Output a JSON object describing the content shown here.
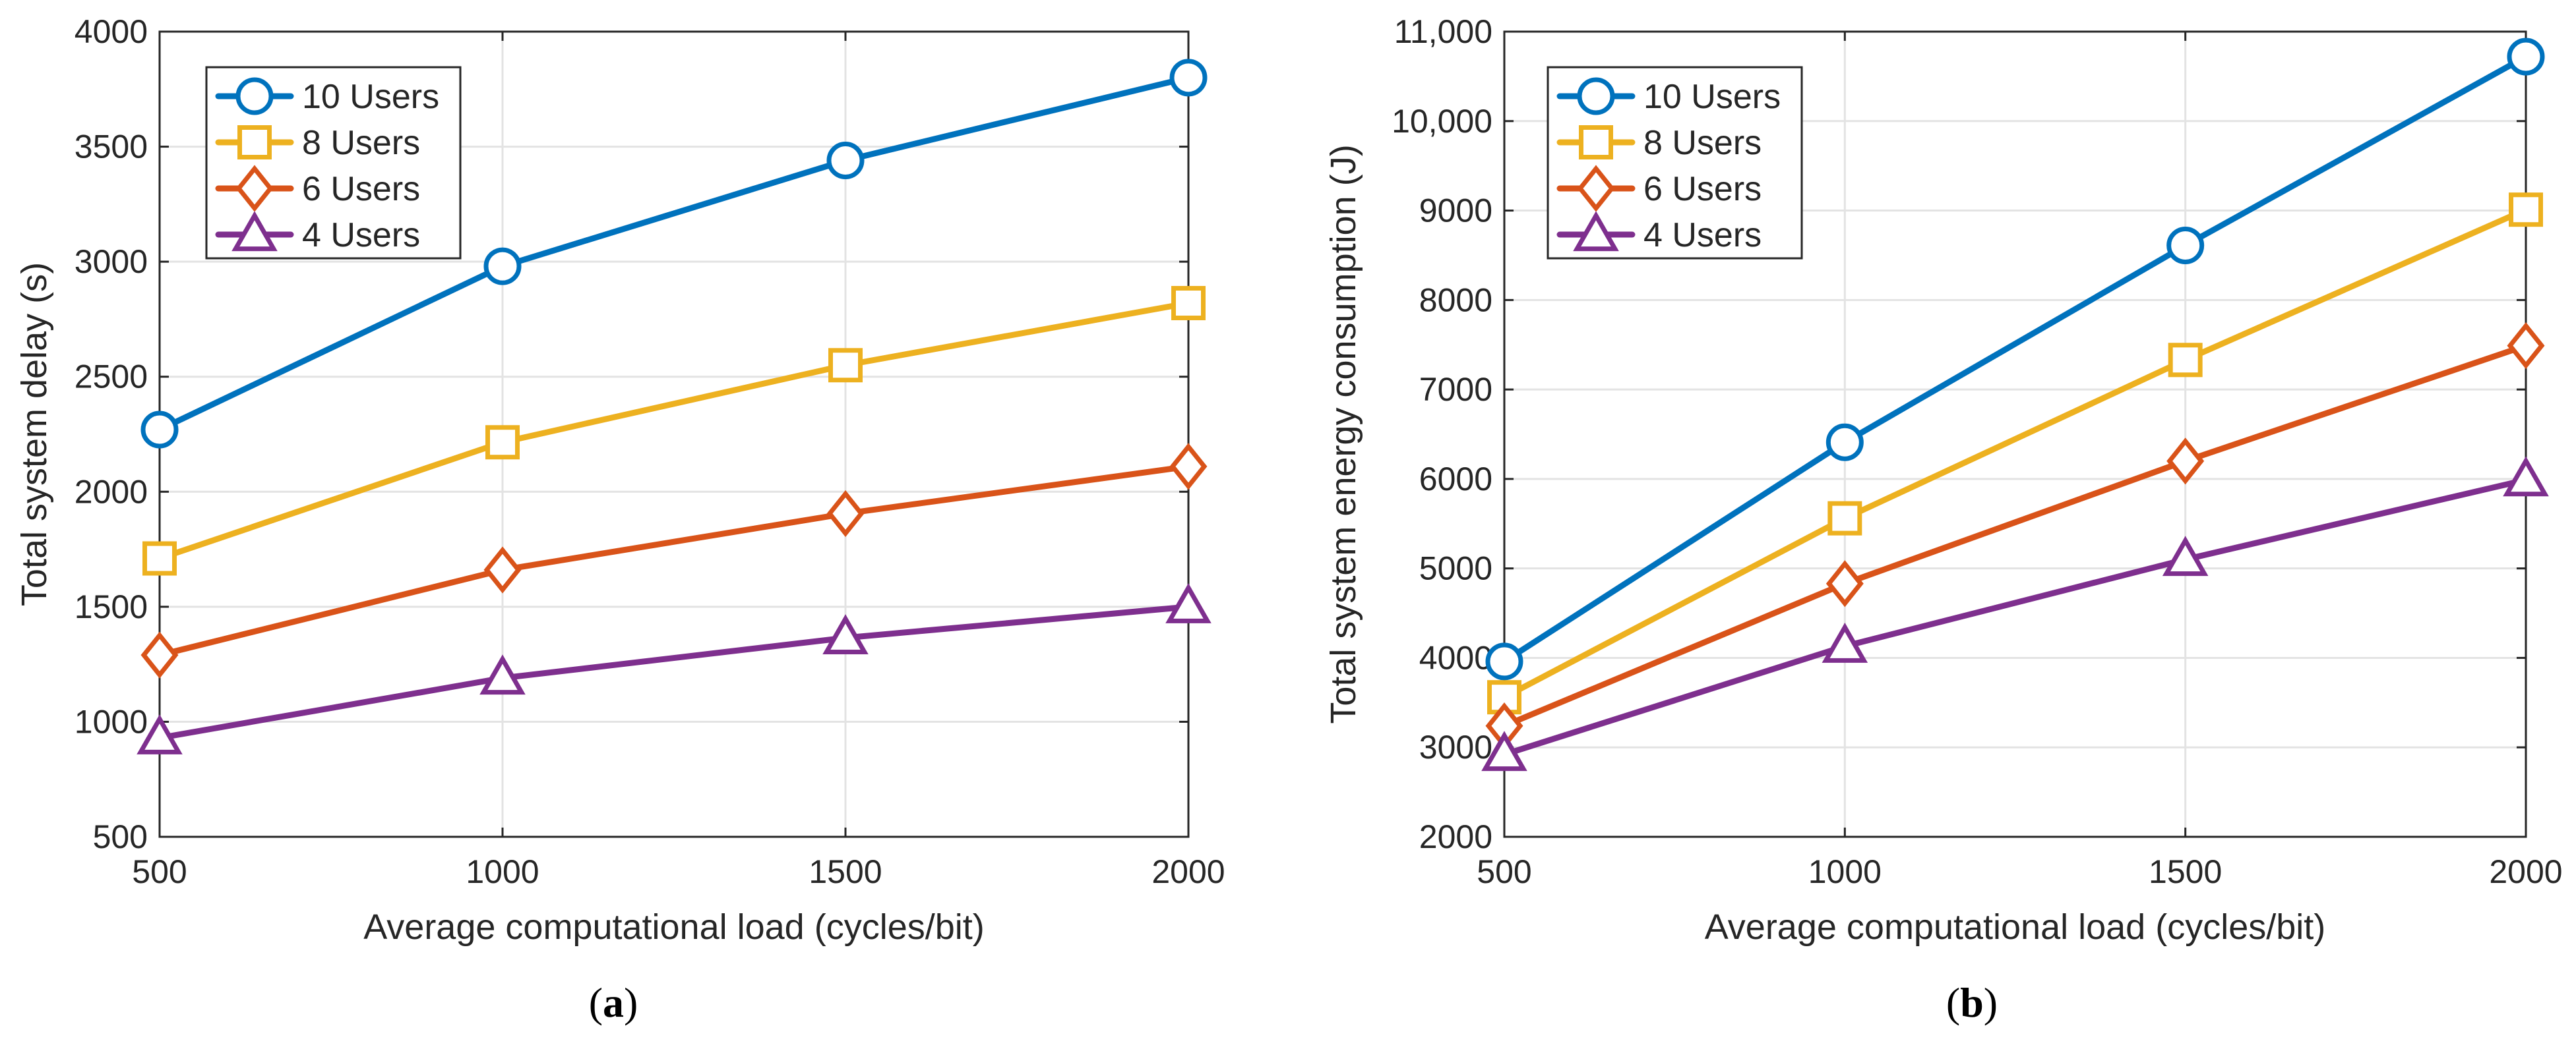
{
  "chart_data": [
    {
      "type": "line",
      "panel_caption": "(a)",
      "caption_letter": "a",
      "xlabel": "Average computational load (cycles/bit)",
      "ylabel": "Total system delay (s)",
      "x": [
        500,
        1000,
        1500,
        2000
      ],
      "x_ticks": [
        "500",
        "1000",
        "1500",
        "2000"
      ],
      "xlim": [
        500,
        2000
      ],
      "ylim": [
        500,
        4000
      ],
      "y_tick_values": [
        500,
        1000,
        1500,
        2000,
        2500,
        3000,
        3500,
        4000
      ],
      "y_ticks": [
        "500",
        "1000",
        "1500",
        "2000",
        "2500",
        "3000",
        "3500",
        "4000"
      ],
      "grid": true,
      "legend_position": "top-left",
      "series": [
        {
          "name": "10 Users",
          "color": "#0072BD",
          "marker": "circle",
          "values": [
            2270,
            2980,
            3440,
            3800
          ]
        },
        {
          "name": "8 Users",
          "color": "#EDB120",
          "marker": "square",
          "values": [
            1710,
            2215,
            2550,
            2820
          ]
        },
        {
          "name": "6 Users",
          "color": "#D95319",
          "marker": "diamond",
          "values": [
            1290,
            1660,
            1905,
            2110
          ]
        },
        {
          "name": "4 Users",
          "color": "#7E2F8E",
          "marker": "triangle",
          "values": [
            930,
            1190,
            1365,
            1500
          ]
        }
      ]
    },
    {
      "type": "line",
      "panel_caption": "(b)",
      "caption_letter": "b",
      "xlabel": "Average computational load (cycles/bit)",
      "ylabel": "Total system energy consumption (J)",
      "x": [
        500,
        1000,
        1500,
        2000
      ],
      "x_ticks": [
        "500",
        "1000",
        "1500",
        "2000"
      ],
      "xlim": [
        500,
        2000
      ],
      "ylim": [
        2000,
        11000
      ],
      "y_tick_values": [
        2000,
        3000,
        4000,
        5000,
        6000,
        7000,
        8000,
        9000,
        10000,
        11000
      ],
      "y_ticks": [
        "2000",
        "3000",
        "4000",
        "5000",
        "6000",
        "7000",
        "8000",
        "9000",
        "10,000",
        "11,000"
      ],
      "grid": true,
      "legend_position": "top-left",
      "series": [
        {
          "name": "10 Users",
          "color": "#0072BD",
          "marker": "circle",
          "values": [
            3960,
            6410,
            8610,
            10720
          ]
        },
        {
          "name": "8 Users",
          "color": "#EDB120",
          "marker": "square",
          "values": [
            3560,
            5560,
            7330,
            9010
          ]
        },
        {
          "name": "6 Users",
          "color": "#D95319",
          "marker": "diamond",
          "values": [
            3240,
            4830,
            6200,
            7490
          ]
        },
        {
          "name": "4 Users",
          "color": "#7E2F8E",
          "marker": "triangle",
          "values": [
            2920,
            4130,
            5100,
            5990
          ]
        }
      ]
    }
  ]
}
